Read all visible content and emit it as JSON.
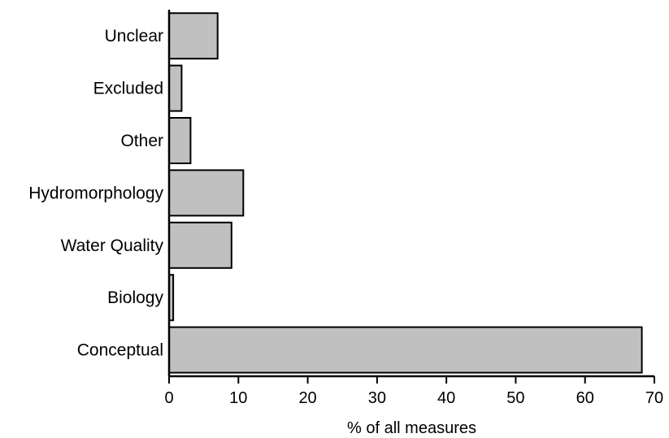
{
  "chart_data": {
    "type": "bar",
    "orientation": "horizontal",
    "categories": [
      "Unclear",
      "Excluded",
      "Other",
      "Hydromorphology",
      "Water Quality",
      "Biology",
      "Conceptual"
    ],
    "values": [
      7.0,
      1.8,
      3.1,
      10.7,
      9.0,
      0.6,
      68.2
    ],
    "xlabel": "% of all measures",
    "ylabel": "",
    "xlim": [
      0,
      70
    ],
    "xticks": [
      0,
      10,
      20,
      30,
      40,
      50,
      60,
      70
    ],
    "grid": false,
    "legend": "none",
    "colors": {
      "bar_fill": "#c0c0c0",
      "bar_stroke": "#000000"
    }
  }
}
